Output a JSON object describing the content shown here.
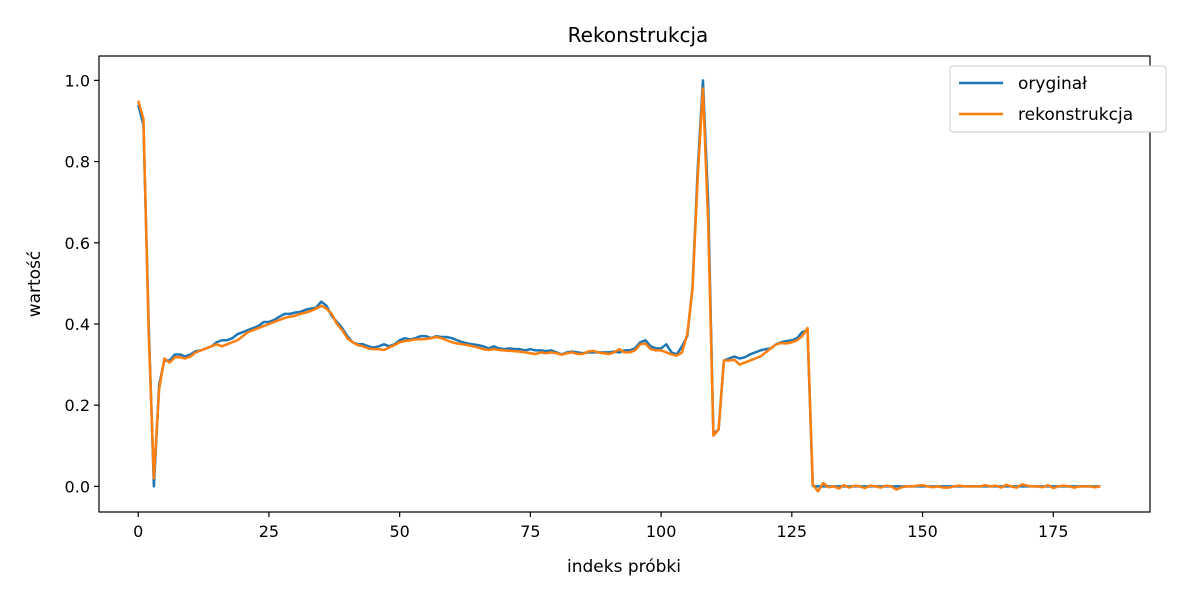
{
  "chart_data": {
    "type": "line",
    "title": "Rekonstrukcja",
    "xlabel": "indeks próbki",
    "ylabel": "wartość",
    "xlim": [
      -7.5,
      193.5
    ],
    "ylim": [
      -0.063,
      1.06
    ],
    "xticks": [
      0,
      25,
      50,
      75,
      100,
      125,
      150,
      175
    ],
    "yticks": [
      0.0,
      0.2,
      0.4,
      0.6,
      0.8,
      1.0
    ],
    "ytick_labels": [
      "0.0",
      "0.2",
      "0.4",
      "0.6",
      "0.8",
      "1.0"
    ],
    "grid": false,
    "legend_position": "top-right",
    "series": [
      {
        "name": "oryginał",
        "color": "#1f77b4",
        "values": [
          0.94,
          0.89,
          0.4,
          0.0,
          0.25,
          0.31,
          0.31,
          0.325,
          0.325,
          0.32,
          0.325,
          0.333,
          0.335,
          0.34,
          0.345,
          0.355,
          0.36,
          0.36,
          0.365,
          0.375,
          0.38,
          0.385,
          0.39,
          0.395,
          0.405,
          0.405,
          0.41,
          0.418,
          0.425,
          0.425,
          0.428,
          0.43,
          0.435,
          0.438,
          0.44,
          0.455,
          0.445,
          0.42,
          0.405,
          0.39,
          0.37,
          0.355,
          0.35,
          0.35,
          0.345,
          0.342,
          0.345,
          0.35,
          0.345,
          0.35,
          0.36,
          0.365,
          0.362,
          0.365,
          0.37,
          0.37,
          0.365,
          0.37,
          0.368,
          0.368,
          0.365,
          0.36,
          0.355,
          0.352,
          0.35,
          0.348,
          0.345,
          0.34,
          0.345,
          0.34,
          0.338,
          0.34,
          0.338,
          0.338,
          0.335,
          0.338,
          0.335,
          0.335,
          0.333,
          0.335,
          0.33,
          0.325,
          0.33,
          0.332,
          0.33,
          0.328,
          0.33,
          0.33,
          0.33,
          0.33,
          0.33,
          0.332,
          0.33,
          0.335,
          0.335,
          0.34,
          0.355,
          0.36,
          0.345,
          0.34,
          0.34,
          0.35,
          0.33,
          0.325,
          0.345,
          0.37,
          0.49,
          0.78,
          1.0,
          0.7,
          0.13,
          0.14,
          0.31,
          0.315,
          0.32,
          0.315,
          0.318,
          0.325,
          0.33,
          0.335,
          0.338,
          0.34,
          0.35,
          0.355,
          0.358,
          0.36,
          0.365,
          0.38,
          0.385,
          0.002,
          0.0,
          0.0,
          0.0,
          0.0,
          0.0,
          0.0,
          0.0,
          0.0,
          0.0,
          0.0,
          0.0,
          0.0,
          0.0,
          0.0,
          0.0,
          0.0,
          0.0,
          0.0,
          0.0,
          0.0,
          0.0,
          0.0,
          0.0,
          0.0,
          0.0,
          0.0,
          0.0,
          0.0,
          0.0,
          0.0,
          0.0,
          0.0,
          0.0,
          0.0,
          0.0,
          0.0,
          0.0,
          0.0,
          0.0,
          0.0,
          0.0,
          0.0,
          0.0,
          0.0,
          0.0,
          0.0,
          0.0,
          0.0,
          0.0,
          0.0,
          0.0,
          0.0,
          0.0,
          0.0,
          0.0
        ]
      },
      {
        "name": "rekonstrukcja",
        "color": "#ff7f0e",
        "values": [
          0.95,
          0.905,
          0.38,
          0.02,
          0.24,
          0.315,
          0.305,
          0.318,
          0.318,
          0.315,
          0.32,
          0.33,
          0.335,
          0.34,
          0.345,
          0.35,
          0.345,
          0.35,
          0.355,
          0.36,
          0.37,
          0.38,
          0.385,
          0.39,
          0.395,
          0.4,
          0.405,
          0.41,
          0.415,
          0.418,
          0.42,
          0.425,
          0.428,
          0.432,
          0.438,
          0.445,
          0.438,
          0.425,
          0.4,
          0.385,
          0.365,
          0.355,
          0.348,
          0.345,
          0.34,
          0.338,
          0.338,
          0.336,
          0.342,
          0.348,
          0.355,
          0.358,
          0.36,
          0.362,
          0.362,
          0.363,
          0.365,
          0.368,
          0.365,
          0.36,
          0.355,
          0.352,
          0.35,
          0.348,
          0.345,
          0.342,
          0.338,
          0.336,
          0.338,
          0.336,
          0.335,
          0.334,
          0.333,
          0.332,
          0.33,
          0.328,
          0.326,
          0.33,
          0.328,
          0.33,
          0.328,
          0.324,
          0.328,
          0.33,
          0.326,
          0.326,
          0.332,
          0.334,
          0.33,
          0.328,
          0.326,
          0.33,
          0.338,
          0.33,
          0.33,
          0.335,
          0.35,
          0.352,
          0.338,
          0.335,
          0.335,
          0.33,
          0.325,
          0.322,
          0.33,
          0.375,
          0.485,
          0.76,
          0.98,
          0.65,
          0.125,
          0.14,
          0.31,
          0.31,
          0.312,
          0.3,
          0.305,
          0.31,
          0.315,
          0.32,
          0.33,
          0.34,
          0.35,
          0.353,
          0.352,
          0.355,
          0.36,
          0.37,
          0.39,
          0.005,
          -0.012,
          0.008,
          -0.002,
          0.0,
          -0.005,
          0.003,
          -0.003,
          0.002,
          0.0,
          -0.004,
          0.002,
          0.0,
          -0.003,
          0.002,
          0.0,
          -0.008,
          -0.002,
          0.0,
          0.0,
          0.002,
          0.003,
          0.0,
          -0.002,
          0.0,
          -0.003,
          -0.003,
          0.0,
          0.002,
          0.0,
          0.0,
          0.0,
          0.0,
          0.003,
          0.0,
          0.002,
          -0.003,
          0.004,
          0.0,
          -0.003,
          0.005,
          0.002,
          0.0,
          0.0,
          -0.002,
          0.003,
          -0.004,
          0.0,
          0.002,
          0.0,
          -0.003,
          0.0,
          0.0,
          0.0,
          -0.002,
          0.0
        ]
      }
    ]
  }
}
